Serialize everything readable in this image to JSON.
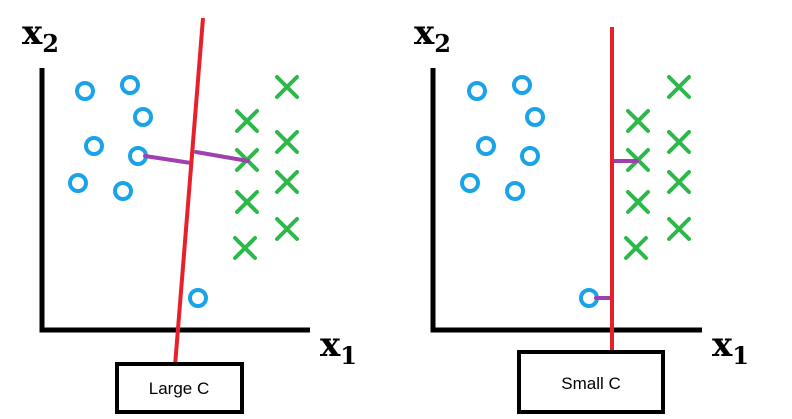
{
  "panels": [
    {
      "id": "left",
      "x_label": "x",
      "x_sub": "1",
      "y_label": "x",
      "y_sub": "2",
      "caption": "Large C",
      "colors": {
        "circle": "#1aa3e8",
        "cross": "#2db84a",
        "boundary": "#e8202a",
        "margin": "#a040b0",
        "axis": "#000000"
      }
    },
    {
      "id": "right",
      "x_label": "x",
      "x_sub": "1",
      "y_label": "x",
      "y_sub": "2",
      "caption": "Small C",
      "colors": {
        "circle": "#1aa3e8",
        "cross": "#2db84a",
        "boundary": "#e8202a",
        "margin": "#a040b0",
        "axis": "#000000"
      }
    }
  ]
}
